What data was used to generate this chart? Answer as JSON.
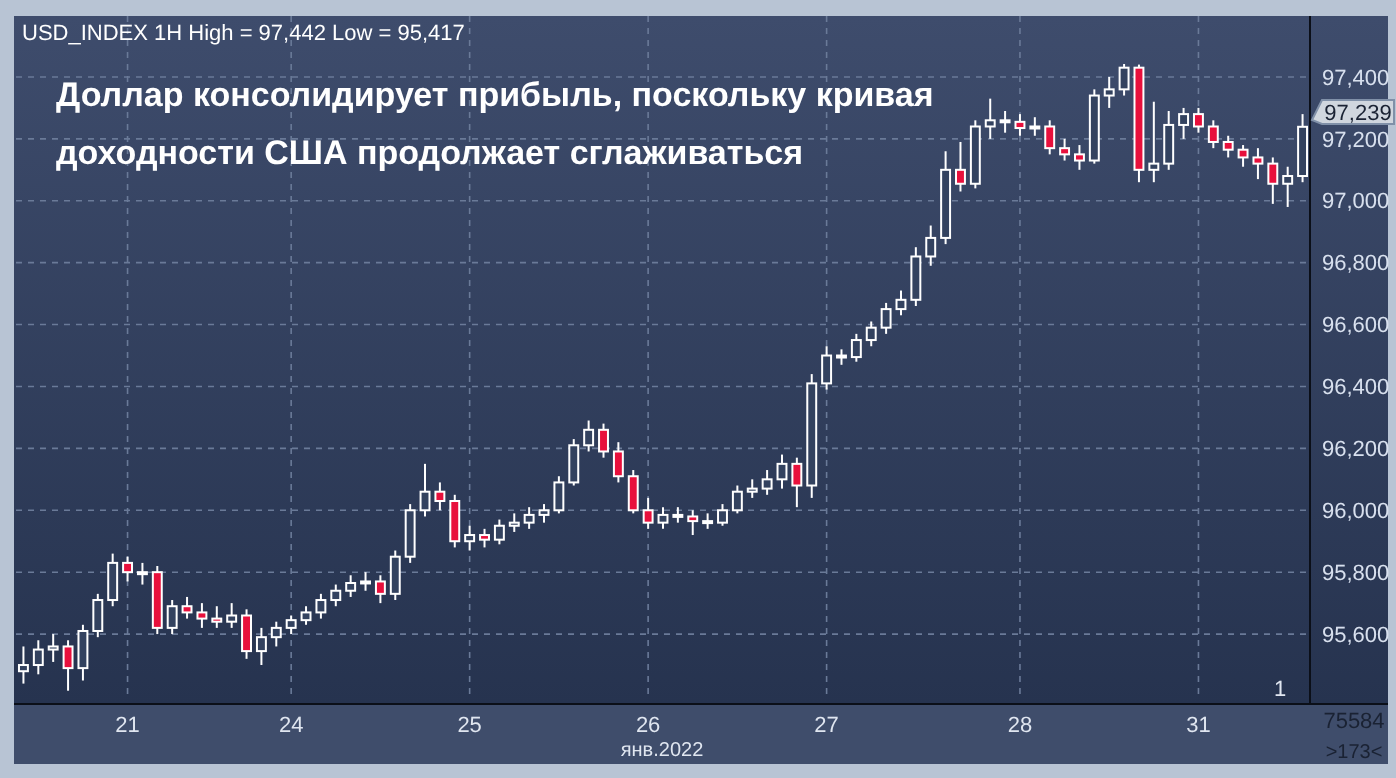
{
  "chart_data": {
    "type": "candlestick",
    "title": "Доллар консолидирует прибыль, поскольку кривая\nдоходности США продолжает сглаживаться",
    "subtitle": "USD_INDEX 1H High = 97,442 Low = 95,417",
    "xlabel": "янв.2022",
    "categories": [
      null,
      null,
      null,
      null,
      null,
      null,
      null,
      "21",
      null,
      null,
      null,
      null,
      null,
      null,
      null,
      null,
      null,
      null,
      "24",
      null,
      null,
      null,
      null,
      null,
      null,
      null,
      null,
      null,
      null,
      null,
      "25",
      null,
      null,
      null,
      null,
      null,
      null,
      null,
      null,
      null,
      null,
      null,
      "26",
      null,
      null,
      null,
      null,
      null,
      null,
      null,
      null,
      null,
      null,
      null,
      "27",
      null,
      null,
      null,
      null,
      null,
      null,
      null,
      null,
      null,
      null,
      null,
      null,
      "28",
      null,
      null,
      null,
      null,
      null,
      null,
      null,
      null,
      null,
      null,
      null,
      "31",
      null,
      null,
      null,
      null,
      null,
      null,
      null
    ],
    "ohlc": [
      [
        95480,
        95560,
        95440,
        95500
      ],
      [
        95500,
        95580,
        95470,
        95550
      ],
      [
        95550,
        95600,
        95510,
        95560
      ],
      [
        95560,
        95580,
        95417,
        95490
      ],
      [
        95490,
        95630,
        95450,
        95610
      ],
      [
        95610,
        95730,
        95590,
        95710
      ],
      [
        95710,
        95860,
        95690,
        95830
      ],
      [
        95830,
        95850,
        95770,
        95800
      ],
      [
        95800,
        95830,
        95760,
        95800
      ],
      [
        95800,
        95820,
        95600,
        95620
      ],
      [
        95620,
        95710,
        95600,
        95690
      ],
      [
        95690,
        95720,
        95650,
        95670
      ],
      [
        95670,
        95700,
        95620,
        95650
      ],
      [
        95650,
        95690,
        95620,
        95640
      ],
      [
        95640,
        95700,
        95620,
        95660
      ],
      [
        95660,
        95680,
        95520,
        95545
      ],
      [
        95545,
        95620,
        95500,
        95590
      ],
      [
        95590,
        95640,
        95560,
        95620
      ],
      [
        95620,
        95660,
        95600,
        95645
      ],
      [
        95645,
        95690,
        95630,
        95670
      ],
      [
        95670,
        95730,
        95650,
        95710
      ],
      [
        95710,
        95760,
        95690,
        95740
      ],
      [
        95740,
        95790,
        95720,
        95765
      ],
      [
        95765,
        95800,
        95740,
        95770
      ],
      [
        95770,
        95790,
        95700,
        95730
      ],
      [
        95730,
        95870,
        95710,
        95850
      ],
      [
        95850,
        96020,
        95830,
        96000
      ],
      [
        96000,
        96150,
        95980,
        96060
      ],
      [
        96060,
        96090,
        96000,
        96030
      ],
      [
        96030,
        96050,
        95880,
        95900
      ],
      [
        95900,
        95950,
        95870,
        95920
      ],
      [
        95920,
        95940,
        95880,
        95905
      ],
      [
        95905,
        95970,
        95890,
        95950
      ],
      [
        95950,
        95990,
        95930,
        95960
      ],
      [
        95960,
        96010,
        95940,
        95985
      ],
      [
        95985,
        96020,
        95960,
        96000
      ],
      [
        96000,
        96110,
        95990,
        96090
      ],
      [
        96090,
        96230,
        96080,
        96210
      ],
      [
        96210,
        96290,
        96190,
        96260
      ],
      [
        96260,
        96280,
        96170,
        96190
      ],
      [
        96190,
        96220,
        96090,
        96110
      ],
      [
        96110,
        96130,
        95990,
        96000
      ],
      [
        96000,
        96040,
        95940,
        95960
      ],
      [
        95960,
        96010,
        95940,
        95985
      ],
      [
        95985,
        96010,
        95960,
        95980
      ],
      [
        95980,
        96000,
        95920,
        95965
      ],
      [
        95965,
        95990,
        95940,
        95960
      ],
      [
        95960,
        96020,
        95950,
        96000
      ],
      [
        96000,
        96080,
        95990,
        96060
      ],
      [
        96060,
        96100,
        96040,
        96070
      ],
      [
        96070,
        96130,
        96050,
        96100
      ],
      [
        96100,
        96180,
        96070,
        96150
      ],
      [
        96150,
        96170,
        96010,
        96080
      ],
      [
        96080,
        96440,
        96040,
        96410
      ],
      [
        96410,
        96530,
        96390,
        96500
      ],
      [
        96500,
        96520,
        96470,
        96495
      ],
      [
        96495,
        96570,
        96480,
        96550
      ],
      [
        96550,
        96610,
        96530,
        96590
      ],
      [
        96590,
        96670,
        96570,
        96650
      ],
      [
        96650,
        96710,
        96630,
        96680
      ],
      [
        96680,
        96850,
        96660,
        96820
      ],
      [
        96820,
        96920,
        96790,
        96880
      ],
      [
        96880,
        97160,
        96860,
        97100
      ],
      [
        97100,
        97190,
        97030,
        97055
      ],
      [
        97055,
        97260,
        97040,
        97240
      ],
      [
        97240,
        97330,
        97200,
        97260
      ],
      [
        97260,
        97290,
        97220,
        97255
      ],
      [
        97255,
        97280,
        97210,
        97235
      ],
      [
        97235,
        97270,
        97210,
        97240
      ],
      [
        97240,
        97260,
        97150,
        97170
      ],
      [
        97170,
        97200,
        97130,
        97150
      ],
      [
        97150,
        97180,
        97100,
        97130
      ],
      [
        97130,
        97360,
        97120,
        97340
      ],
      [
        97340,
        97400,
        97300,
        97360
      ],
      [
        97360,
        97442,
        97340,
        97430
      ],
      [
        97430,
        97440,
        97060,
        97100
      ],
      [
        97100,
        97320,
        97060,
        97120
      ],
      [
        97120,
        97290,
        97100,
        97245
      ],
      [
        97245,
        97300,
        97200,
        97280
      ],
      [
        97280,
        97300,
        97220,
        97240
      ],
      [
        97240,
        97260,
        97170,
        97190
      ],
      [
        97190,
        97210,
        97140,
        97165
      ],
      [
        97165,
        97180,
        97110,
        97140
      ],
      [
        97140,
        97170,
        97070,
        97120
      ],
      [
        97120,
        97140,
        96990,
        97055
      ],
      [
        97055,
        97110,
        96980,
        97080
      ],
      [
        97080,
        97280,
        97060,
        97239
      ]
    ],
    "colors": [
      "#ffffff",
      "#ffffff",
      "#ffffff",
      "#e8103c",
      "#ffffff",
      "#ffffff",
      "#ffffff",
      "#e8103c",
      "#ffffff",
      "#e8103c",
      "#ffffff",
      "#e8103c",
      "#e8103c",
      "#e8103c",
      "#ffffff",
      "#e8103c",
      "#ffffff",
      "#ffffff",
      "#ffffff",
      "#ffffff",
      "#ffffff",
      "#ffffff",
      "#ffffff",
      "#ffffff",
      "#e8103c",
      "#ffffff",
      "#ffffff",
      "#ffffff",
      "#e8103c",
      "#e8103c",
      "#ffffff",
      "#e8103c",
      "#ffffff",
      "#ffffff",
      "#ffffff",
      "#ffffff",
      "#ffffff",
      "#ffffff",
      "#ffffff",
      "#e8103c",
      "#e8103c",
      "#e8103c",
      "#e8103c",
      "#ffffff",
      "#e8103c",
      "#e8103c",
      "#e8103c",
      "#ffffff",
      "#ffffff",
      "#ffffff",
      "#ffffff",
      "#ffffff",
      "#e8103c",
      "#ffffff",
      "#ffffff",
      "#e8103c",
      "#ffffff",
      "#ffffff",
      "#ffffff",
      "#ffffff",
      "#ffffff",
      "#ffffff",
      "#ffffff",
      "#e8103c",
      "#ffffff",
      "#ffffff",
      "#e8103c",
      "#e8103c",
      "#ffffff",
      "#e8103c",
      "#e8103c",
      "#e8103c",
      "#ffffff",
      "#ffffff",
      "#ffffff",
      "#e8103c",
      "#ffffff",
      "#ffffff",
      "#ffffff",
      "#e8103c",
      "#e8103c",
      "#e8103c",
      "#e8103c",
      "#e8103c",
      "#e8103c",
      "#ffffff",
      "#ffffff"
    ],
    "ylim": [
      95387,
      97597
    ],
    "yticks": [
      {
        "value": 95600,
        "label": "95,600"
      },
      {
        "value": 95800,
        "label": "95,800"
      },
      {
        "value": 96000,
        "label": "96,000"
      },
      {
        "value": 96200,
        "label": "96,200"
      },
      {
        "value": 96400,
        "label": "96,400"
      },
      {
        "value": 96600,
        "label": "96,600"
      },
      {
        "value": 96800,
        "label": "96,800"
      },
      {
        "value": 97000,
        "label": "97,000"
      },
      {
        "value": 97200,
        "label": "97,200"
      },
      {
        "value": 97400,
        "label": "97,400"
      }
    ],
    "grid": true,
    "annotations": [
      "97,239",
      "1",
      "75584",
      ">173<"
    ]
  }
}
